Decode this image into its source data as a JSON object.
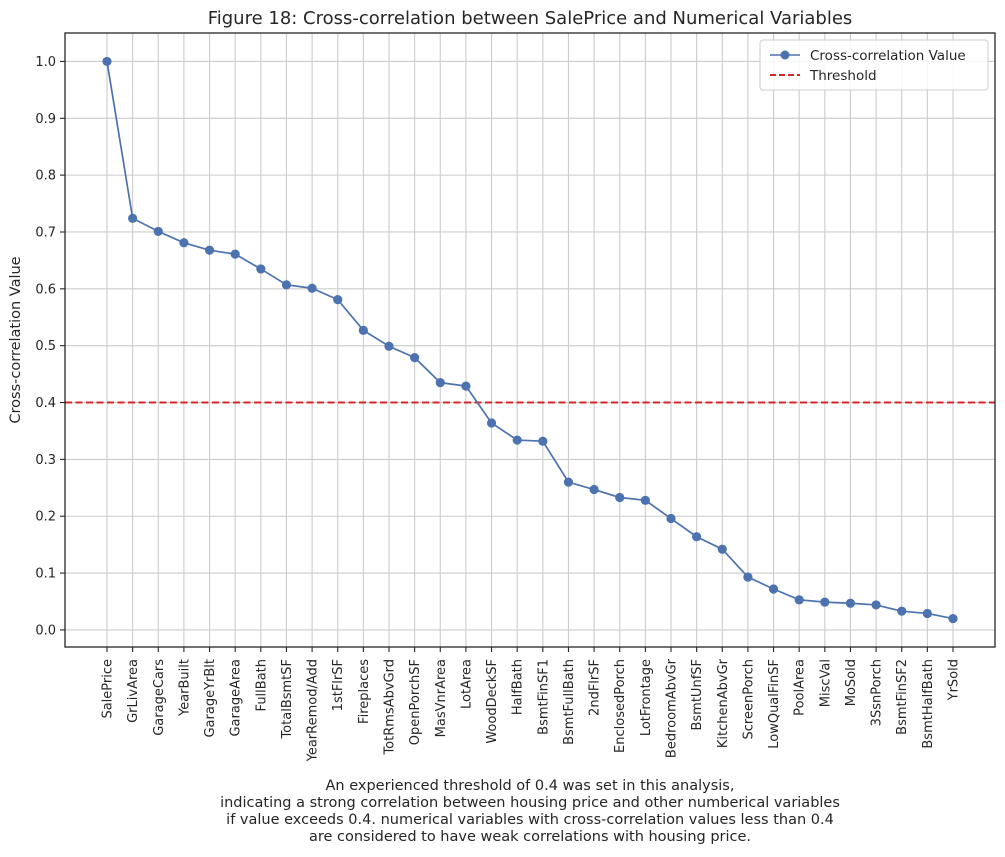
{
  "chart_data": {
    "type": "line",
    "title": "Figure 18: Cross-correlation between SalePrice and Numerical Variables",
    "xlabel": "",
    "ylabel": "Cross-correlation Value",
    "ylim": [
      -0.03,
      1.05
    ],
    "yticks": [
      0.0,
      0.1,
      0.2,
      0.3,
      0.4,
      0.5,
      0.6,
      0.7,
      0.8,
      0.9,
      1.0
    ],
    "ytick_labels": [
      "0.0",
      "0.1",
      "0.2",
      "0.3",
      "0.4",
      "0.5",
      "0.6",
      "0.7",
      "0.8",
      "0.9",
      "1.0"
    ],
    "grid": true,
    "categories": [
      "SalePrice",
      "GrLivArea",
      "GarageCars",
      "YearBuilt",
      "GarageYrBlt",
      "GarageArea",
      "FullBath",
      "TotalBsmtSF",
      "YearRemod/Add",
      "1stFlrSF",
      "Fireplaces",
      "TotRmsAbvGrd",
      "OpenPorchSF",
      "MasVnrArea",
      "LotArea",
      "WoodDeckSF",
      "HalfBath",
      "BsmtFinSF1",
      "BsmtFullBath",
      "2ndFlrSF",
      "EnclosedPorch",
      "LotFrontage",
      "BedroomAbvGr",
      "BsmtUnfSF",
      "KitchenAbvGr",
      "ScreenPorch",
      "LowQualFinSF",
      "PoolArea",
      "MiscVal",
      "MoSold",
      "3SsnPorch",
      "BsmtFinSF2",
      "BsmtHalfBath",
      "YrSold"
    ],
    "series": [
      {
        "name": "Cross-correlation Value",
        "color": "#4c72b0",
        "values": [
          1.0,
          0.724,
          0.701,
          0.681,
          0.668,
          0.661,
          0.635,
          0.607,
          0.601,
          0.581,
          0.527,
          0.499,
          0.479,
          0.435,
          0.429,
          0.364,
          0.334,
          0.332,
          0.26,
          0.247,
          0.233,
          0.228,
          0.196,
          0.164,
          0.142,
          0.093,
          0.072,
          0.053,
          0.049,
          0.047,
          0.044,
          0.033,
          0.029,
          0.02
        ]
      }
    ],
    "threshold": {
      "name": "Threshold",
      "value": 0.4,
      "color": "#d62728"
    },
    "legend": {
      "position": "top-right",
      "entries": [
        "Cross-correlation Value",
        "Threshold"
      ]
    },
    "caption": [
      "An experienced threshold of 0.4 was set in this analysis,",
      "indicating a strong correlation between housing price and other numberical variables",
      "if value exceeds 0.4. numerical variables with cross-correlation values less than 0.4",
      "are considered to have weak correlations with housing price."
    ]
  }
}
